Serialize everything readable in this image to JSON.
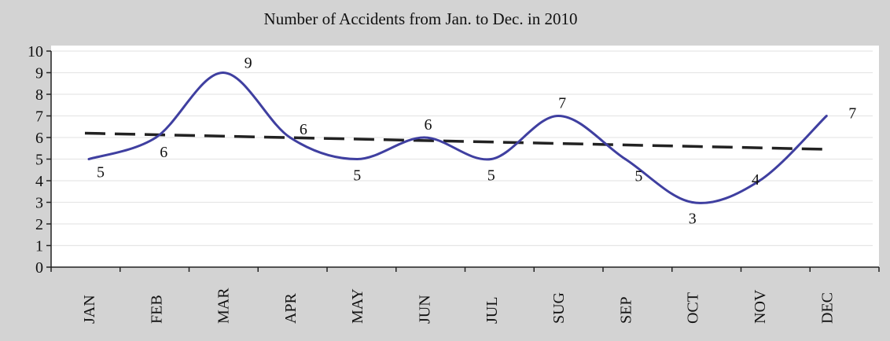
{
  "chart_data": {
    "type": "line",
    "title": "Number of Accidents from Jan. to Dec. in 2010",
    "categories": [
      "JAN",
      "FEB",
      "MAR",
      "APR",
      "MAY",
      "JUN",
      "JUL",
      "SUG",
      "SEP",
      "OCT",
      "NOV",
      "DEC"
    ],
    "series": [
      {
        "values": [
          5,
          6,
          9,
          6,
          5,
          6,
          5,
          7,
          5,
          3,
          4,
          7
        ],
        "color": "#3f3fa0",
        "style": "smooth"
      }
    ],
    "trendline": {
      "start": 6.2,
      "end": 5.45,
      "color": "#222222",
      "style": "dashed"
    },
    "data_labels": [
      "5",
      "6",
      "9",
      "6",
      "5",
      "6",
      "5",
      "7",
      "5",
      "3",
      "4",
      "7"
    ],
    "y_ticks": [
      "0",
      "1",
      "2",
      "3",
      "4",
      "5",
      "6",
      "7",
      "8",
      "9",
      "10"
    ],
    "ylim": [
      0,
      10
    ],
    "grid": true,
    "xlabel": "",
    "ylabel": "",
    "colors": {
      "background": "#d3d3d3",
      "plot_area": "#ffffff",
      "grid": "#e6e6e6"
    }
  }
}
